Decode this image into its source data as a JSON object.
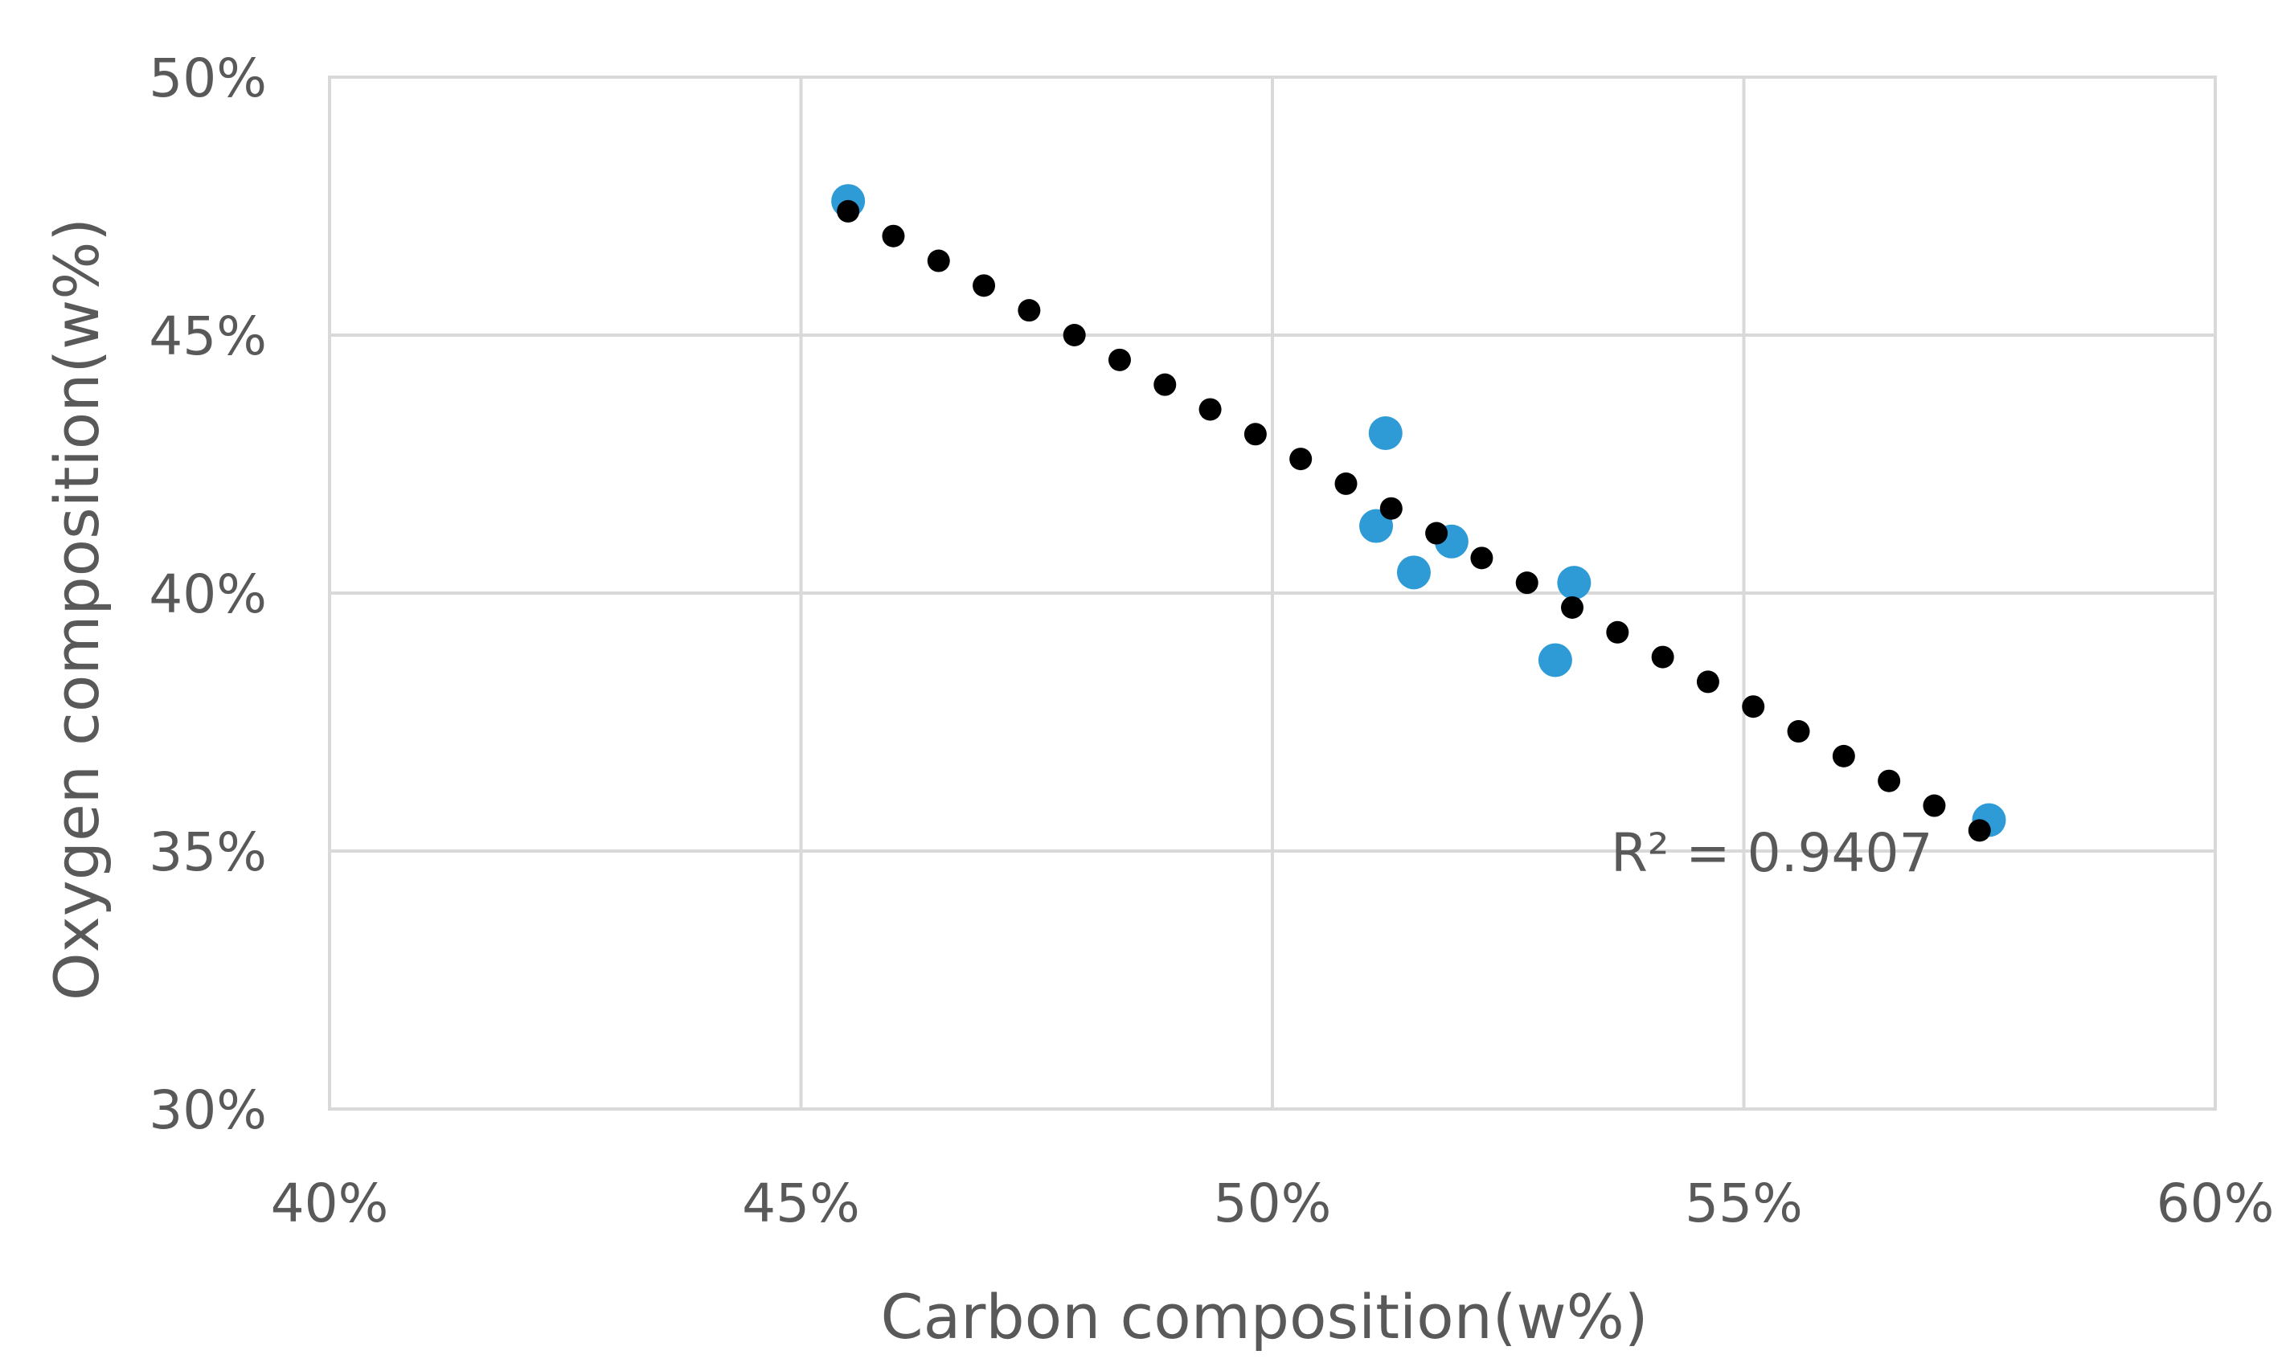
{
  "chart_data": {
    "type": "scatter",
    "xlabel": "Carbon composition(w%)",
    "ylabel": "Oxygen composition(w%)",
    "xlim": [
      40,
      60
    ],
    "ylim": [
      30,
      50
    ],
    "x_ticks": [
      40,
      45,
      50,
      55,
      60
    ],
    "y_ticks": [
      30,
      35,
      40,
      45,
      50
    ],
    "x_tick_labels": [
      "40%",
      "45%",
      "50%",
      "55%",
      "60%"
    ],
    "y_tick_labels": [
      "30%",
      "35%",
      "40%",
      "45%",
      "50%"
    ],
    "grid": true,
    "series": [
      {
        "color": "#2e9bd6",
        "points": [
          {
            "x": 45.5,
            "y": 47.6
          },
          {
            "x": 51.2,
            "y": 43.1
          },
          {
            "x": 51.1,
            "y": 41.3
          },
          {
            "x": 51.9,
            "y": 41.0
          },
          {
            "x": 51.5,
            "y": 40.4
          },
          {
            "x": 53.2,
            "y": 40.2
          },
          {
            "x": 53.0,
            "y": 38.7
          },
          {
            "x": 57.6,
            "y": 35.6
          }
        ]
      }
    ],
    "trendline": {
      "type": "linear",
      "style": "dotted",
      "color": "#000000",
      "x_start": 45.5,
      "y_start": 47.4,
      "x_end": 57.5,
      "y_end": 35.4
    },
    "annotation": {
      "text": "R² = 0.9407"
    }
  }
}
